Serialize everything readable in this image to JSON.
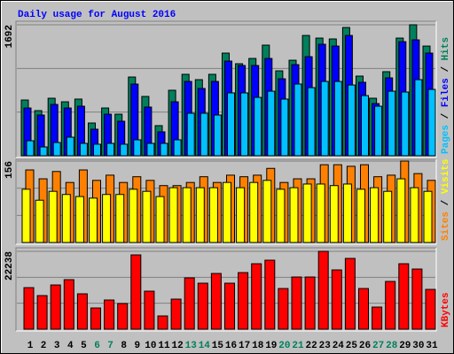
{
  "title": "Daily usage for August 2016",
  "legend_separator": "/",
  "chart_data": [
    {
      "type": "bar",
      "series": [
        {
          "name": "Pages",
          "color": "#00c0ff",
          "values": [
            194,
            114,
            171,
            240,
            160,
            149,
            160,
            149,
            206,
            160,
            160,
            206,
            549,
            549,
            526,
            812,
            812,
            754,
            834,
            732,
            926,
            880,
            960,
            960,
            914,
            777,
            640,
            834,
            823,
            983,
            857
          ]
        },
        {
          "name": "Files",
          "color": "#0000ff",
          "values": [
            617,
            526,
            663,
            617,
            640,
            343,
            537,
            446,
            926,
            629,
            309,
            697,
            960,
            869,
            960,
            1223,
            1166,
            1166,
            1257,
            994,
            1177,
            1280,
            1440,
            1417,
            1554,
            949,
            674,
            1006,
            1474,
            1497,
            1326
          ]
        },
        {
          "name": "Hits",
          "color": "#00805c",
          "values": [
            720,
            583,
            743,
            697,
            732,
            423,
            617,
            537,
            1017,
            766,
            389,
            846,
            1052,
            983,
            1052,
            1326,
            1189,
            1257,
            1429,
            1097,
            1234,
            1554,
            1520,
            1509,
            1657,
            1029,
            743,
            1086,
            1520,
            1692,
            1417
          ]
        }
      ],
      "ylim": [
        0,
        1692
      ],
      "yticks": [
        1692
      ],
      "grid": true
    },
    {
      "type": "bar",
      "series": [
        {
          "name": "Sites",
          "color": "#ff8000",
          "values": [
            139,
            122,
            136,
            115,
            139,
            119,
            129,
            115,
            126,
            119,
            109,
            109,
            115,
            126,
            115,
            129,
            126,
            129,
            142,
            115,
            122,
            122,
            149,
            149,
            146,
            149,
            126,
            129,
            156,
            132,
            119
          ]
        },
        {
          "name": "Visits",
          "color": "#ffff00",
          "values": [
            102,
            81,
            98,
            92,
            88,
            85,
            92,
            92,
            102,
            98,
            88,
            105,
            105,
            105,
            105,
            115,
            105,
            115,
            119,
            102,
            105,
            112,
            112,
            109,
            112,
            102,
            105,
            98,
            122,
            105,
            98
          ]
        }
      ],
      "ylim": [
        0,
        156
      ],
      "yticks": [
        156
      ],
      "grid": true
    },
    {
      "type": "bar",
      "categories": [
        "1",
        "2",
        "3",
        "4",
        "5",
        "6",
        "7",
        "8",
        "9",
        "10",
        "11",
        "12",
        "13",
        "14",
        "15",
        "16",
        "17",
        "18",
        "19",
        "20",
        "21",
        "22",
        "23",
        "24",
        "25",
        "26",
        "27",
        "28",
        "29",
        "30",
        "31"
      ],
      "highlighted_indices": [
        5,
        6,
        12,
        13,
        19,
        20,
        26,
        27
      ],
      "highlight_color": "#00805c",
      "series": [
        {
          "name": "KBytes",
          "color": "#ff0000",
          "values": [
            11877,
            9603,
            12635,
            14151,
            10108,
            6065,
            8339,
            7328,
            21227,
            10866,
            3791,
            8592,
            14657,
            13140,
            15920,
            13140,
            16173,
            18700,
            19711,
            11624,
            14909,
            14909,
            22238,
            16931,
            20216,
            11624,
            6318,
            13646,
            18700,
            17184,
            11372
          ]
        }
      ],
      "ylim": [
        0,
        22238
      ],
      "yticks": [
        22238
      ],
      "grid": true
    }
  ]
}
